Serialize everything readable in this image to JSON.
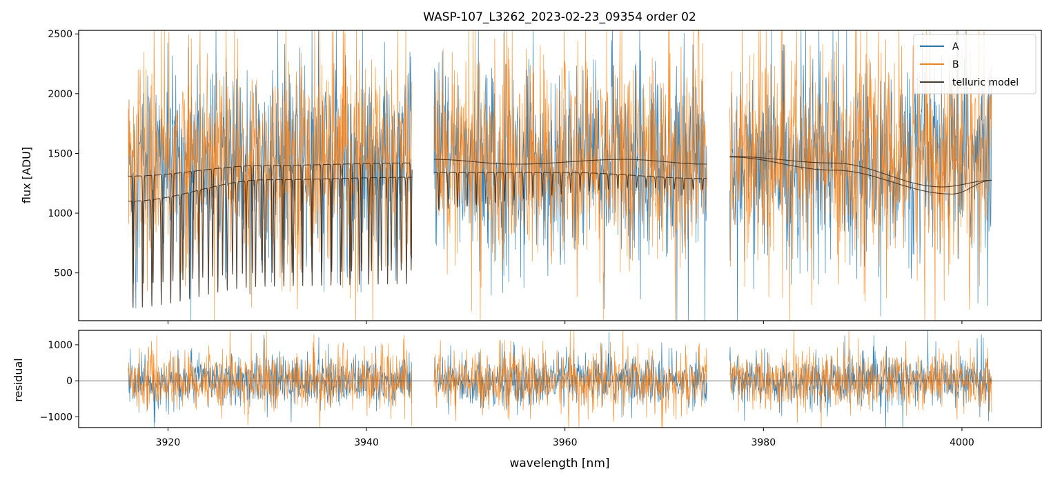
{
  "chart_data": [
    {
      "type": "line",
      "panel": "top",
      "title": "WASP-107_L3262_2023-02-23_09354  order 02",
      "xlabel": "",
      "ylabel": "flux [ADU]",
      "xlim": [
        3911,
        4008
      ],
      "ylim": [
        100,
        2530
      ],
      "yticks": [
        500,
        1000,
        1500,
        2000,
        2500
      ],
      "ytick_labels": [
        "500",
        "1000",
        "1500",
        "2000",
        "2500"
      ],
      "xticks": [
        3920,
        3940,
        3960,
        3980,
        4000
      ],
      "legend_position": "top-right",
      "segments": [
        {
          "start": 3916.0,
          "end": 3944.6
        },
        {
          "start": 3946.8,
          "end": 3974.3
        },
        {
          "start": 3976.6,
          "end": 4003.0
        }
      ],
      "series": [
        {
          "name": "A",
          "color": "#1f77b4",
          "description": "noisy spectrum, center ~1430 ADU, spread ~±600"
        },
        {
          "name": "B",
          "color": "#ff7f0e",
          "description": "noisy spectrum, center ~1450 ADU, spread ~±650"
        },
        {
          "name": "telluric model",
          "color": "#3b2a1a",
          "continuum_upper": [
            {
              "segment": 0,
              "x": [
                3916.0,
                3930.0,
                3944.6
              ],
              "y": [
                1310,
                1400,
                1420
              ]
            },
            {
              "segment": 1,
              "x": [
                3946.8,
                3955.0,
                3966.0,
                3974.3
              ],
              "y": [
                1450,
                1410,
                1450,
                1410
              ]
            },
            {
              "segment": 2,
              "x": [
                3976.6,
                3987.0,
                3998.0,
                4003.0
              ],
              "y": [
                1475,
                1420,
                1220,
                1275
              ]
            }
          ],
          "continuum_lower": [
            {
              "segment": 0,
              "x": [
                3916.0,
                3930.0,
                3944.6
              ],
              "y": [
                1100,
                1280,
                1300
              ]
            },
            {
              "segment": 1,
              "x": [
                3946.8,
                3960.0,
                3974.3
              ],
              "y": [
                1340,
                1340,
                1290
              ]
            },
            {
              "segment": 2,
              "x": [
                3976.6,
                3987.0,
                3999.0,
                4003.0
              ],
              "y": [
                1470,
                1360,
                1160,
                1275
              ]
            }
          ]
        }
      ]
    },
    {
      "type": "line",
      "panel": "bottom",
      "xlabel": "wavelength [nm]",
      "ylabel": "residual",
      "xlim": [
        3911,
        4008
      ],
      "ylim": [
        -1300,
        1400
      ],
      "yticks": [
        -1000,
        0,
        1000
      ],
      "ytick_labels": [
        "−1000",
        "0",
        "1000"
      ],
      "xticks": [
        3920,
        3940,
        3960,
        3980,
        4000
      ],
      "xtick_labels": [
        "3920",
        "3940",
        "3960",
        "3980",
        "4000"
      ],
      "series": [
        {
          "name": "A",
          "color": "#1f77b4",
          "description": "residual noise, center 0, spread ~±800"
        },
        {
          "name": "B",
          "color": "#ff7f0e",
          "description": "residual noise, center 0, spread ~±900"
        },
        {
          "name": "zero",
          "color": "#555555",
          "y": 0
        }
      ]
    }
  ],
  "legend": {
    "items": [
      {
        "label": "A",
        "color": "#1f77b4"
      },
      {
        "label": "B",
        "color": "#ff7f0e"
      },
      {
        "label": "telluric model",
        "color": "#4a3a2a"
      }
    ]
  }
}
